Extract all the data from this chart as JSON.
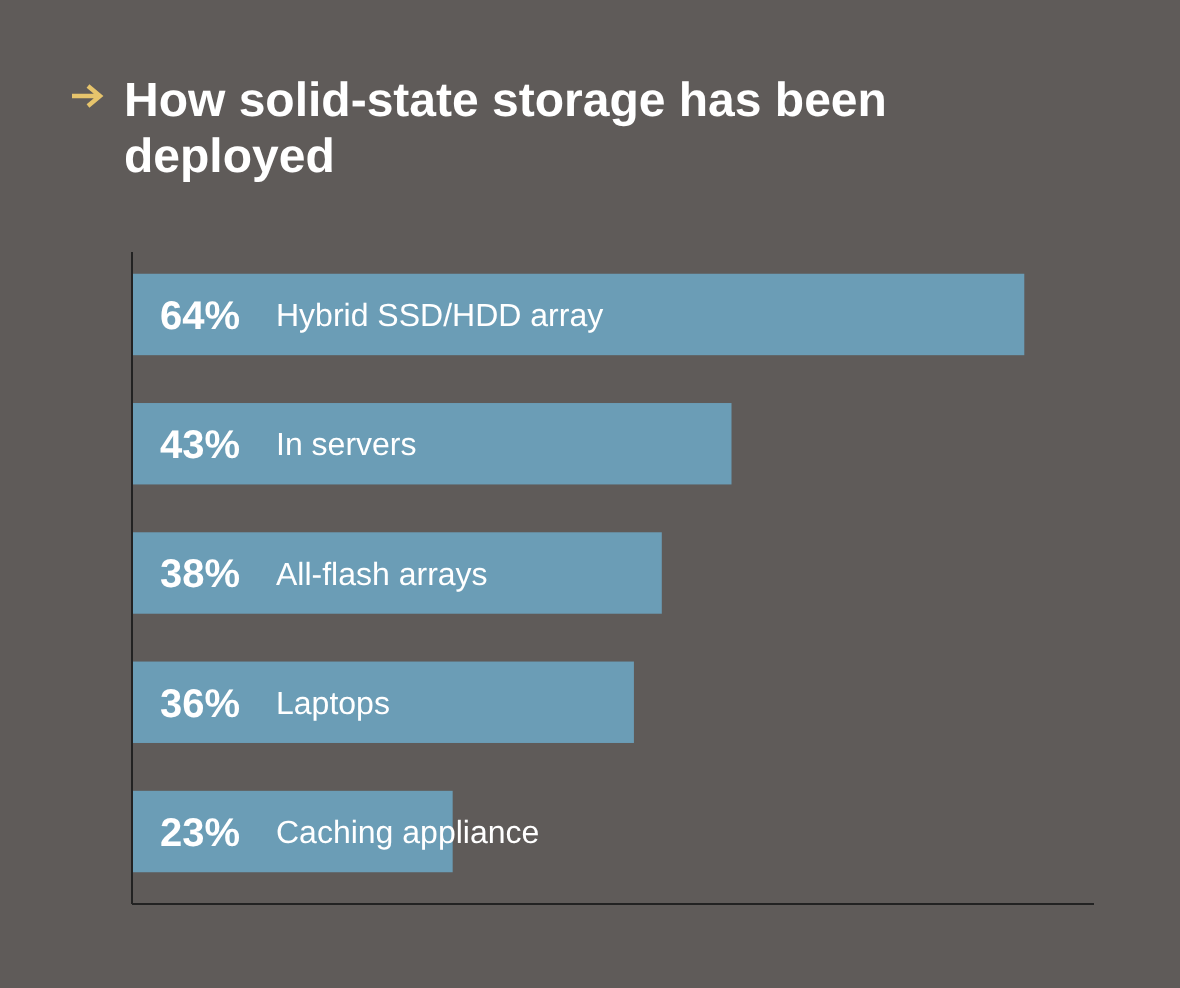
{
  "chart_data": {
    "type": "bar",
    "orientation": "horizontal",
    "title": "How solid-state storage has been deployed",
    "categories": [
      "Hybrid SSD/HDD array",
      "In servers",
      "All-flash arrays",
      "Laptops",
      "Caching appliance"
    ],
    "values": [
      64,
      43,
      38,
      36,
      23
    ],
    "value_labels": [
      "64%",
      "43%",
      "38%",
      "36%",
      "23%"
    ],
    "color": "#6b9db6",
    "xlim": [
      0,
      69
    ]
  }
}
